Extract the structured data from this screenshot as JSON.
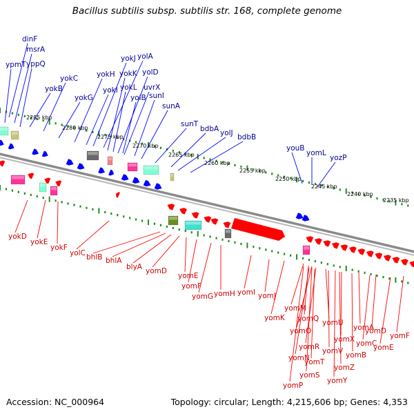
{
  "title": "Bacillus subtilis subsp. subtilis str. 168, complete genome",
  "footer": {
    "accession": "Accession: NC_000964",
    "topology": "Topology: circular; Length: 4,215,606 bp; Genes: 4,353"
  },
  "colors": {
    "forward_strand": "#0000ff",
    "reverse_strand": "#ff0000",
    "forward_label": "#00008b",
    "reverse_label": "#cc0000",
    "backbone": "#8a8a8a",
    "tick": "#228b22",
    "feature_green": "#7fffd4",
    "feature_olive": "#c8c478",
    "feature_pink": "#ff3399",
    "feature_gray": "#696969",
    "feature_cyan": "#40e0d0",
    "feature_dark_olive": "#6b8e23",
    "feature_salmon": "#f08080"
  },
  "scale_labels": [
    "2285 kbp",
    "2280 kbp",
    "2275 kbp",
    "2270 kbp",
    "2265 kbp",
    "2260 kbp",
    "2255 kbp",
    "2250 kbp",
    "2245 kbp",
    "2240 kbp",
    "2235 kbp"
  ],
  "forward_gene_labels": [
    "dinF",
    "msrA",
    "ypmT",
    "yppQ",
    "yokC",
    "yokB",
    "yokG",
    "yokH",
    "yokJ",
    "yolA",
    "yokK",
    "yolD",
    "yokI",
    "yokL",
    "uvrX",
    "yolB",
    "sunI",
    "sunA",
    "sunT",
    "bdbA",
    "yolJ",
    "bdbB",
    "youB",
    "yomL",
    "yozP"
  ],
  "reverse_gene_labels": [
    "yokD",
    "yokE",
    "yokF",
    "yolC",
    "bhlB",
    "bhlA",
    "blyA",
    "yomD",
    "yomE",
    "yomF",
    "yomG",
    "yomH",
    "yomI",
    "yomJ",
    "yomK",
    "yomM",
    "yomQ",
    "yomO",
    "yomU",
    "yomA",
    "yomD",
    "yomF",
    "yomR",
    "yomX",
    "yomC",
    "yomE",
    "yomN",
    "yomV",
    "yomB",
    "yomT",
    "yomZ",
    "yomS",
    "yomY",
    "yomP"
  ]
}
